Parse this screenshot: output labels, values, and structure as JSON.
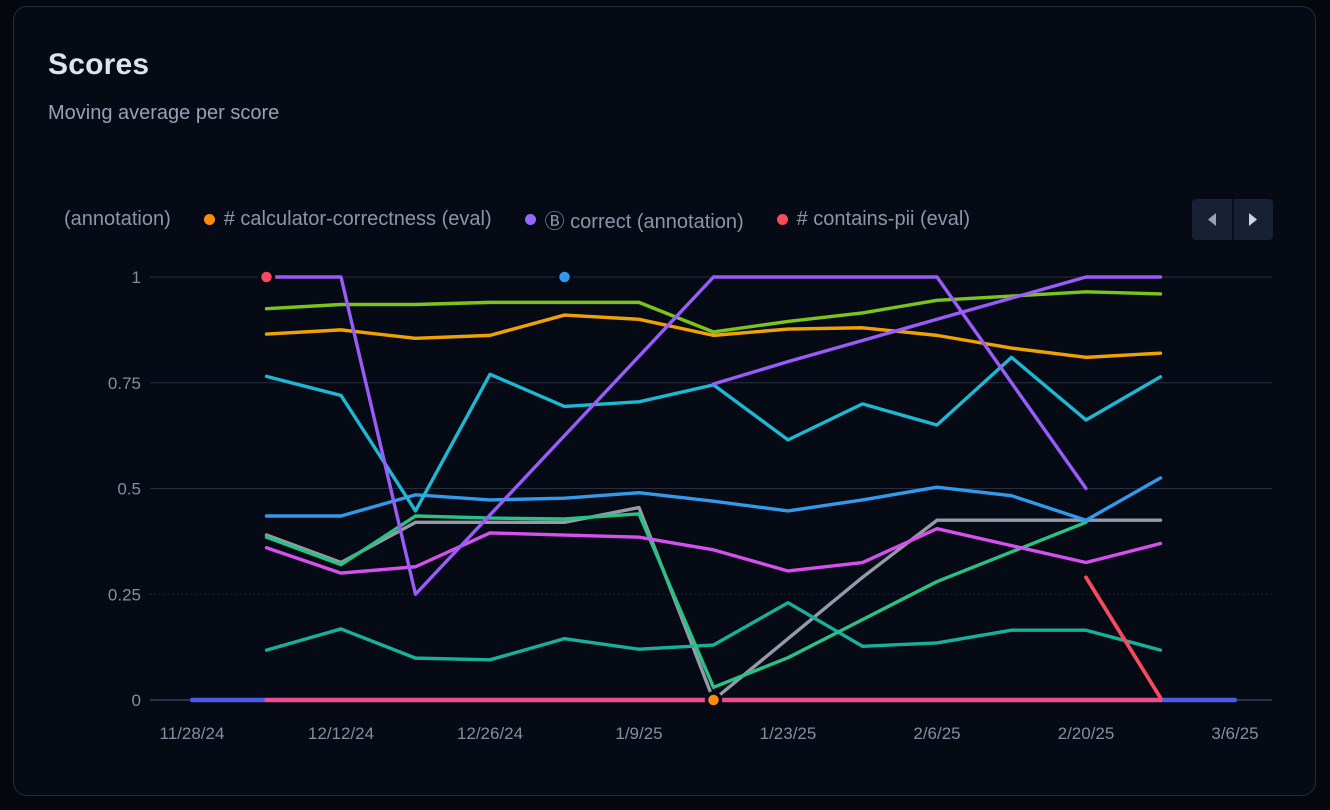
{
  "card": {
    "title": "Scores",
    "subtitle": "Moving average per score"
  },
  "legend": {
    "items": [
      {
        "label": "(annotation)",
        "color": null,
        "truncated": true
      },
      {
        "label": "# calculator-correctness (eval)",
        "color": "#fd8c0e"
      },
      {
        "label": "Ⓑ correct (annotation)",
        "color": "#9468fa"
      },
      {
        "label": "# contains-pii (eval)",
        "color": "#f74a5c"
      }
    ],
    "nav": {
      "prev_icon": "chevron-left",
      "next_icon": "chevron-right"
    }
  },
  "chart_data": {
    "type": "line",
    "title": "Scores",
    "subtitle": "Moving average per score",
    "ylim": [
      0,
      1
    ],
    "grid": true,
    "legend_position": "top",
    "y_ticks": [
      "0",
      "0.25",
      "0.5",
      "0.75",
      "1"
    ],
    "y_tick_values": [
      0,
      0.25,
      0.5,
      0.75,
      1
    ],
    "dashed_gridlines": [
      0.25
    ],
    "x": [
      "11/28/24",
      "12/5/24",
      "12/12/24",
      "12/19/24",
      "12/26/24",
      "1/2/25",
      "1/9/25",
      "1/16/25",
      "1/23/25",
      "1/30/25",
      "2/6/25",
      "2/13/25",
      "2/20/25",
      "2/27/25",
      "3/6/25"
    ],
    "x_tick_labels": [
      "11/28/24",
      "12/12/24",
      "12/26/24",
      "1/9/25",
      "1/23/25",
      "2/6/25",
      "2/20/25",
      "3/6/25"
    ],
    "x_tick_indices": [
      0,
      2,
      4,
      6,
      8,
      10,
      12,
      14
    ],
    "series": [
      {
        "id": "gray-line",
        "color": "#959aa6",
        "width": 3.4,
        "values": [
          null,
          0.39,
          0.325,
          0.42,
          0.42,
          0.42,
          0.455,
          0,
          0.145,
          0.29,
          0.425,
          0.425,
          0.425,
          0.425,
          null
        ]
      },
      {
        "id": "teal-line",
        "color": "#18b09a",
        "width": 3.4,
        "values": [
          null,
          0.118,
          0.168,
          0.099,
          0.095,
          0.145,
          0.12,
          0.13,
          0.23,
          0.127,
          0.135,
          0.165,
          0.165,
          0.118,
          null
        ]
      },
      {
        "id": "emerald-line",
        "color": "#29c184",
        "width": 3.4,
        "values": [
          null,
          0.385,
          0.32,
          0.435,
          0.43,
          0.428,
          0.44,
          0.03,
          0.1,
          0.19,
          0.28,
          0.35,
          0.42,
          null,
          null
        ]
      },
      {
        "id": "magenta-line",
        "color": "#d650ee",
        "width": 3.4,
        "values": [
          null,
          0.36,
          0.3,
          0.315,
          0.395,
          0.39,
          0.385,
          0.355,
          0.305,
          0.325,
          0.405,
          0.365,
          0.325,
          0.37,
          null
        ]
      },
      {
        "id": "blue-line",
        "color": "#3399ea",
        "width": 3.4,
        "values": [
          null,
          0.435,
          0.435,
          0.485,
          0.473,
          0.477,
          0.49,
          0.47,
          0.447,
          0.473,
          0.503,
          0.483,
          0.425,
          0.525,
          null
        ]
      },
      {
        "id": "cyan-line",
        "color": "#1eb8d2",
        "width": 3.4,
        "values": [
          null,
          0.765,
          0.72,
          0.447,
          0.77,
          0.694,
          0.705,
          0.745,
          0.615,
          0.7,
          0.65,
          0.81,
          0.662,
          0.764,
          null
        ]
      },
      {
        "id": "amber-line",
        "legend_label": "# calculator-correctness (eval)",
        "color": "#f0a202",
        "width": 3.4,
        "values": [
          null,
          0.865,
          0.875,
          0.855,
          0.862,
          0.91,
          0.9,
          0.862,
          0.877,
          0.88,
          0.862,
          0.832,
          0.81,
          0.82,
          null
        ]
      },
      {
        "id": "lime-line",
        "color": "#7cc41c",
        "width": 3.4,
        "values": [
          null,
          0.925,
          0.935,
          0.935,
          0.94,
          0.94,
          0.94,
          0.87,
          0.895,
          0.915,
          0.945,
          0.955,
          0.965,
          0.96,
          null
        ]
      },
      {
        "id": "purple-line-rising",
        "color": "#9a5cf8",
        "width": 3.4,
        "values": [
          null,
          null,
          null,
          null,
          null,
          null,
          null,
          0.747,
          0.8,
          0.85,
          0.9,
          0.95,
          1,
          1,
          null
        ]
      },
      {
        "id": "purple-line-main",
        "legend_label": "Ⓑ correct (annotation)",
        "color": "#9a5cf8",
        "width": 3.4,
        "values": [
          null,
          1,
          1,
          0.25,
          0.4375,
          0.625,
          0.8125,
          1,
          1,
          1,
          1,
          0.75,
          0.5,
          null,
          null
        ]
      },
      {
        "id": "indigo-zero-left",
        "color": "#4a5ae8",
        "width": 4.4,
        "values": [
          0,
          0,
          null,
          null,
          null,
          null,
          null,
          null,
          null,
          null,
          null,
          null,
          null,
          null,
          null
        ]
      },
      {
        "id": "indigo-zero-right",
        "color": "#4a5ae8",
        "width": 4.4,
        "values": [
          null,
          null,
          null,
          null,
          null,
          null,
          null,
          null,
          null,
          null,
          null,
          null,
          null,
          0,
          0
        ]
      },
      {
        "id": "pink-zero-line",
        "color": "#ec4c92",
        "width": 4.4,
        "values": [
          null,
          0,
          0,
          0,
          0,
          0,
          0,
          0,
          0,
          0,
          0,
          0,
          0,
          0,
          null
        ]
      },
      {
        "id": "red-line",
        "legend_label": "# contains-pii (eval)",
        "color": "#f74a5c",
        "width": 3.8,
        "values": [
          null,
          null,
          null,
          null,
          null,
          null,
          null,
          null,
          null,
          null,
          null,
          null,
          0.29,
          0.005,
          null
        ]
      }
    ],
    "markers": [
      {
        "x": "12/5/24",
        "y": 1,
        "color": "#f74a5c"
      },
      {
        "x": "1/2/25",
        "y": 1,
        "color": "#3399ea"
      },
      {
        "x": "1/16/25",
        "y": 0,
        "color": "#fd8c0e"
      }
    ]
  }
}
